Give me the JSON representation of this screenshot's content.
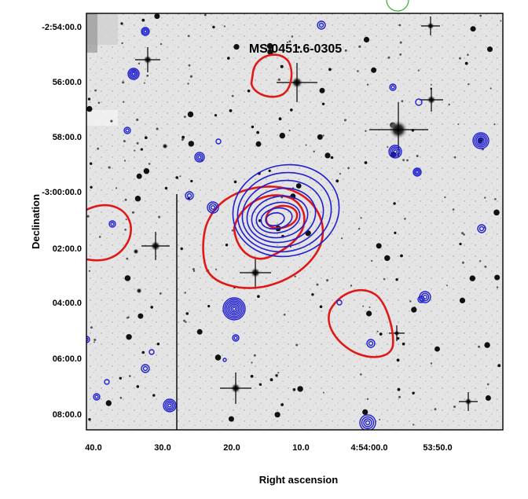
{
  "title": "MS 0451.6-0305",
  "y_axis": {
    "label": "Declination",
    "ticks": [
      "-2:54:00.0",
      "56:00.0",
      "58:00.0",
      "-3:00:00.0",
      "02:00.0",
      "04:00.0",
      "06:00.0",
      "08:00.0"
    ]
  },
  "x_axis": {
    "label": "Right ascension",
    "ticks": [
      "40.0",
      "30.0",
      "20.0",
      "10.0",
      "4:54:00.0",
      "53:50.0"
    ]
  },
  "contour_colors": {
    "xray": "#1f1fd0",
    "radio": "#e01818",
    "marker": "#2fb12f"
  }
}
